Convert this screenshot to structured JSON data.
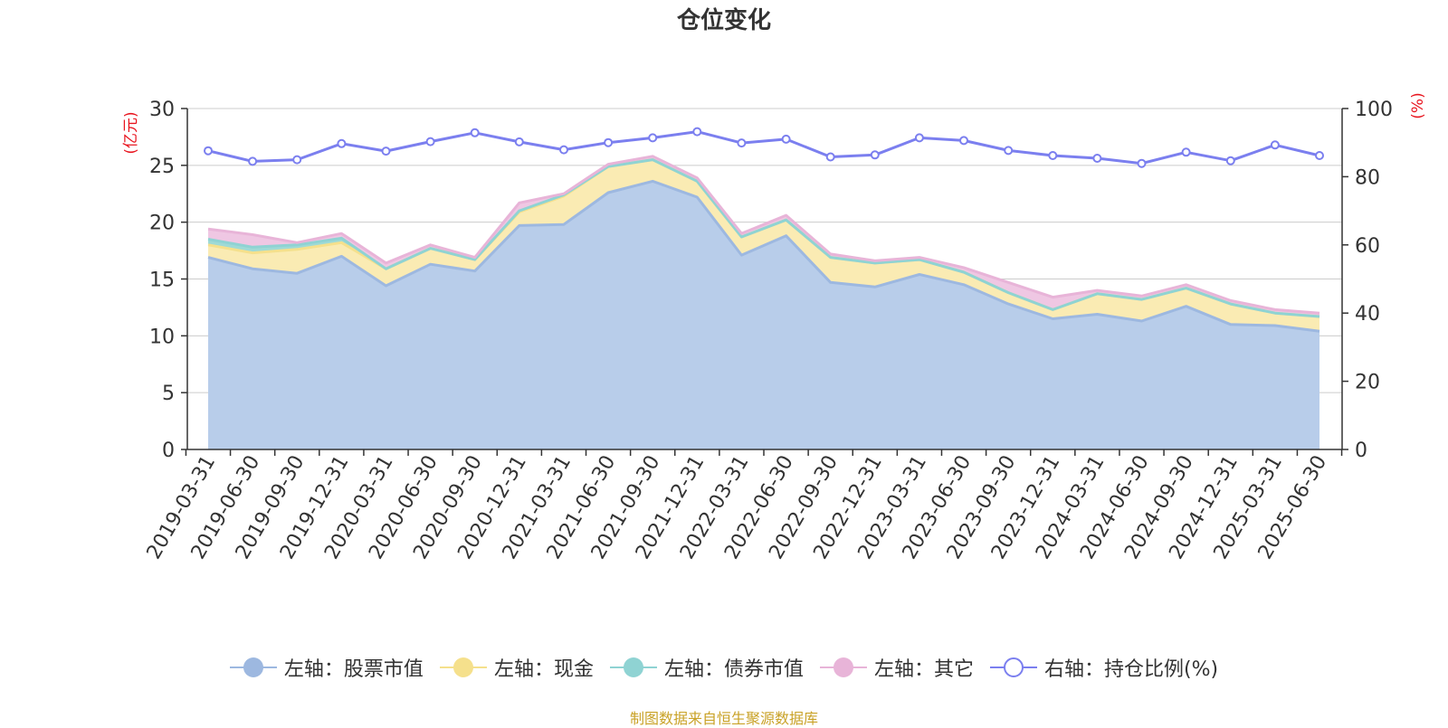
{
  "title": "仓位变化",
  "source_note": "制图数据来自恒生聚源数据库",
  "chart_data": {
    "type": "area",
    "title": "仓位变化",
    "x": [
      "2019-03-31",
      "2019-06-30",
      "2019-09-30",
      "2019-12-31",
      "2020-03-31",
      "2020-06-30",
      "2020-09-30",
      "2020-12-31",
      "2021-03-31",
      "2021-06-30",
      "2021-09-30",
      "2021-12-31",
      "2022-03-31",
      "2022-06-30",
      "2022-09-30",
      "2022-12-31",
      "2023-03-31",
      "2023-06-30",
      "2023-09-30",
      "2023-12-31",
      "2024-03-31",
      "2024-06-30",
      "2024-09-30",
      "2024-12-31",
      "2025-03-31",
      "2025-06-30"
    ],
    "left_axis": {
      "label": "(亿元)",
      "ylim": [
        0,
        30
      ],
      "ticks": [
        0,
        5,
        10,
        15,
        20,
        25,
        30
      ]
    },
    "right_axis": {
      "label": "(%)",
      "ylim": [
        0,
        100
      ],
      "ticks": [
        0,
        20,
        40,
        60,
        80,
        100
      ]
    },
    "stacked": true,
    "grid": true,
    "legend_position": "bottom",
    "series": [
      {
        "name": "左轴：股票市值",
        "axis": "left",
        "color": "#9db8e0",
        "fill": "#b8cdea",
        "values": [
          16.9,
          15.9,
          15.5,
          17.0,
          14.4,
          16.3,
          15.7,
          19.7,
          19.8,
          22.6,
          23.6,
          22.2,
          17.1,
          18.8,
          14.7,
          14.3,
          15.4,
          14.5,
          12.8,
          11.5,
          11.9,
          11.3,
          12.6,
          11.0,
          10.9,
          10.4
        ]
      },
      {
        "name": "左轴：现金",
        "axis": "left",
        "color": "#f5e08c",
        "fill": "#faebb3",
        "values": [
          1.1,
          1.4,
          2.1,
          1.2,
          1.5,
          1.4,
          1.0,
          1.2,
          2.5,
          2.3,
          1.9,
          1.4,
          1.6,
          1.4,
          2.2,
          2.1,
          1.3,
          1.1,
          1.0,
          0.8,
          1.8,
          1.9,
          1.6,
          1.8,
          1.1,
          1.3
        ]
      },
      {
        "name": "左轴：债券市值",
        "axis": "left",
        "color": "#8fd3d3",
        "fill": "#9fdad6",
        "values": [
          0.5,
          0.5,
          0.4,
          0.4,
          0.0,
          0.0,
          0.0,
          0.1,
          0.1,
          0.0,
          0.0,
          0.0,
          0.0,
          0.0,
          0.0,
          0.0,
          0.0,
          0.0,
          0.0,
          0.0,
          0.0,
          0.0,
          0.0,
          0.0,
          0.0,
          0.0
        ]
      },
      {
        "name": "左轴：其它",
        "axis": "left",
        "color": "#e8b4d8",
        "fill": "#efc7e3",
        "values": [
          0.9,
          1.1,
          0.2,
          0.4,
          0.5,
          0.3,
          0.2,
          0.7,
          0.1,
          0.2,
          0.3,
          0.3,
          0.3,
          0.4,
          0.3,
          0.2,
          0.2,
          0.4,
          0.9,
          1.1,
          0.3,
          0.3,
          0.3,
          0.3,
          0.3,
          0.3
        ]
      },
      {
        "name": "右轴：持仓比例(%)",
        "axis": "right",
        "type": "line",
        "color": "#7b7fef",
        "values": [
          87.6,
          84.5,
          85.0,
          89.7,
          87.5,
          90.3,
          92.9,
          90.2,
          87.9,
          90.0,
          91.4,
          93.2,
          89.9,
          91.0,
          85.8,
          86.4,
          91.4,
          90.6,
          87.7,
          86.2,
          85.4,
          83.9,
          87.2,
          84.7,
          89.3,
          86.2
        ]
      }
    ]
  }
}
